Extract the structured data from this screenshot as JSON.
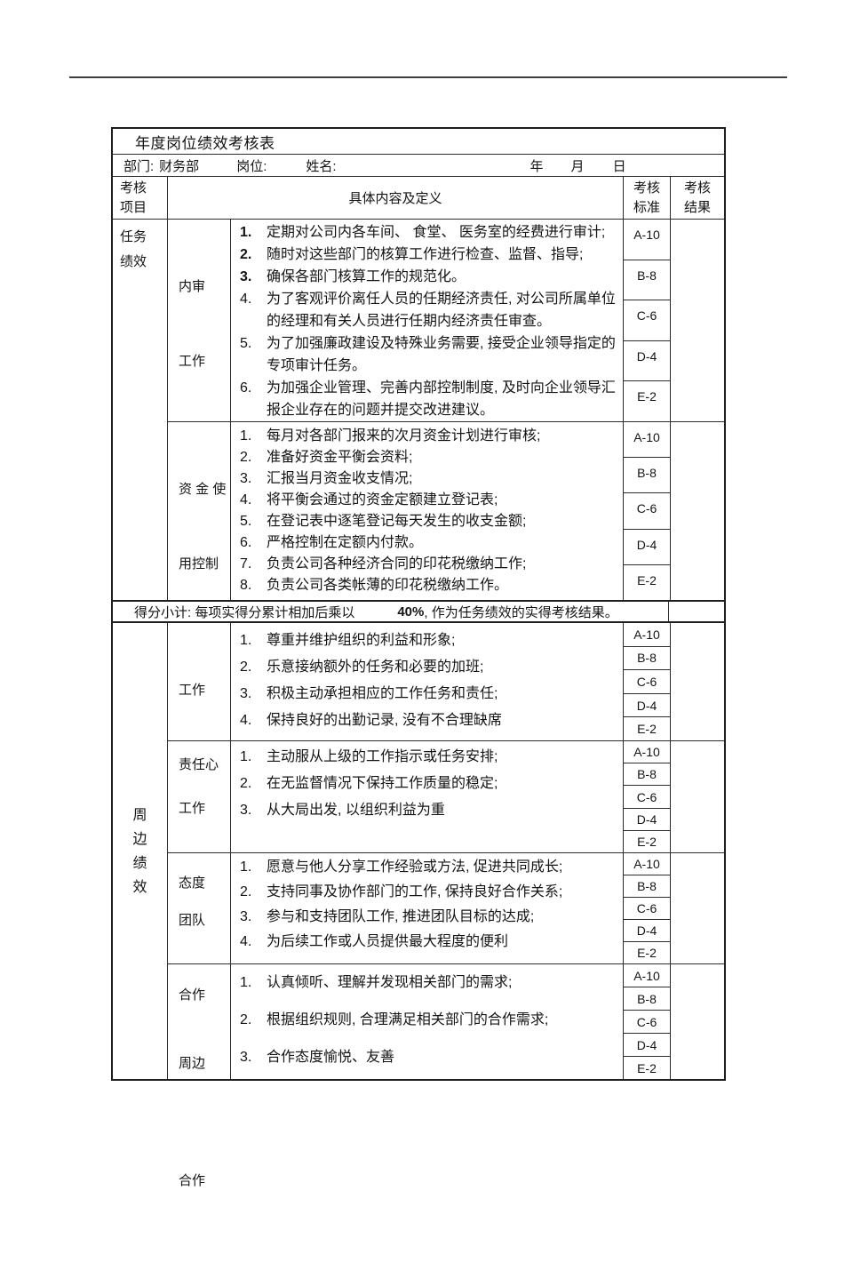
{
  "page": {
    "table_title": "年度岗位绩效考核表",
    "info_row": {
      "department_label": "部门:",
      "department_value": "财务部",
      "position_label": "岗位:",
      "name_label": "姓名:",
      "year_label": "年",
      "month_label": "月",
      "day_label": "日"
    },
    "header": {
      "item_lines": [
        "考核",
        "项目"
      ],
      "content_label": "具体内容及定义",
      "standard_lines": [
        "考核",
        "标准"
      ],
      "result_lines": [
        "考核",
        "结果"
      ]
    },
    "grade_scale": [
      "A-10",
      "B-8",
      "C-6",
      "D-4",
      "E-2"
    ],
    "sections": [
      {
        "name_lines": [
          "任务",
          "绩效"
        ],
        "blocks": [
          {
            "label_lines": [
              "内审",
              "工作"
            ],
            "items": [
              {
                "num": "1.",
                "text": "定期对公司内各车间、  食堂、 医务室的经费进行审计;"
              },
              {
                "num": "2.",
                "text": "随时对这些部门的核算工作进行检查、监督、指导;"
              },
              {
                "num": "3.",
                "text": "确保各部门核算工作的规范化。"
              },
              {
                "num": "4.",
                "text": "为了客观评价离任人员的任期经济责任, 对公司所属单位的经理和有关人员进行任期内经济责任审查。"
              },
              {
                "num": "5.",
                "text": "为了加强廉政建设及特殊业务需要, 接受企业领导指定的专项审计任务。"
              },
              {
                "num": "6.",
                "text": "为加强企业管理、完善内部控制制度, 及时向企业领导汇报企业存在的问题并提交改进建议。"
              }
            ]
          },
          {
            "label_lines": [
              "资 金 使",
              "用控制"
            ],
            "items": [
              {
                "num": "1.",
                "text": "每月对各部门报来的次月资金计划进行审核;"
              },
              {
                "num": "2.",
                "text": "准备好资金平衡会资料;"
              },
              {
                "num": "3.",
                "text": "汇报当月资金收支情况;"
              },
              {
                "num": "4.",
                "text": "将平衡会通过的资金定额建立登记表;"
              },
              {
                "num": "5.",
                "text": "在登记表中逐笔登记每天发生的收支金额;"
              },
              {
                "num": "6.",
                "text": "严格控制在定额内付款。"
              },
              {
                "num": "7.",
                "text": "负责公司各种经济合同的印花税缴纳工作;"
              },
              {
                "num": "8.",
                "text": "负责公司各类帐薄的印花税缴纳工作。"
              }
            ]
          }
        ]
      },
      {
        "name_lines": [
          "周",
          "边",
          "绩",
          "效"
        ],
        "blocks": [
          {
            "label_lines": [
              "工作",
              "责任心"
            ],
            "items": [
              {
                "num": "1.",
                "text": "尊重并维护组织的利益和形象;"
              },
              {
                "num": "2.",
                "text": "乐意接纳额外的任务和必要的加班;"
              },
              {
                "num": "3.",
                "text": "积极主动承担相应的工作任务和责任;"
              },
              {
                "num": "4.",
                "text": "保持良好的出勤记录, 没有不合理缺席"
              }
            ]
          },
          {
            "label_lines": [
              "工作",
              "态度"
            ],
            "items": [
              {
                "num": "1.",
                "text": "主动服从上级的工作指示或任务安排;"
              },
              {
                "num": "2.",
                "text": "在无监督情况下保持工作质量的稳定;"
              },
              {
                "num": "3.",
                "text": "从大局出发, 以组织利益为重"
              }
            ]
          },
          {
            "label_lines": [
              "团队",
              "合作"
            ],
            "items": [
              {
                "num": "1.",
                "text": "愿意与他人分享工作经验或方法, 促进共同成长;"
              },
              {
                "num": "2.",
                "text": "支持同事及协作部门的工作, 保持良好合作关系;"
              },
              {
                "num": "3.",
                "text": "参与和支持团队工作, 推进团队目标的达成;"
              },
              {
                "num": "4.",
                "text": "为后续工作或人员提供最大程度的便利"
              }
            ]
          },
          {
            "label_lines": [
              "周边",
              "合作"
            ],
            "items": [
              {
                "num": "1.",
                "text": "认真倾听、理解并发现相关部门的需求;"
              },
              {
                "num": "2.",
                "text": "根据组织规则, 合理满足相关部门的合作需求;"
              },
              {
                "num": "3.",
                "text": "合作态度愉悦、友善"
              }
            ]
          }
        ]
      }
    ],
    "subtotal": {
      "prefix": "得分小计: 每项实得分累计相加后乘以",
      "percent": "40%",
      "suffix": ", 作为任务绩效的实得考核结果。"
    }
  }
}
